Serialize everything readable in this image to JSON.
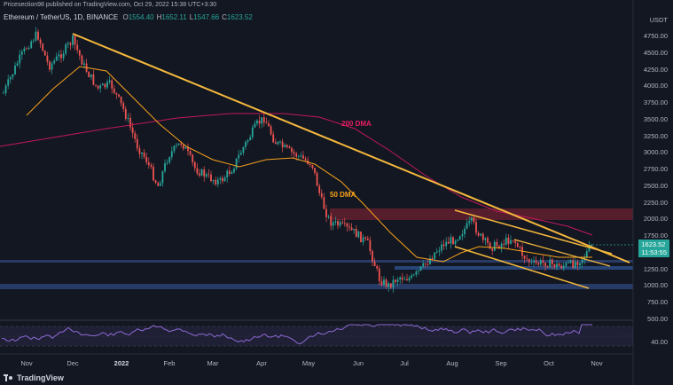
{
  "header": {
    "published_by": "Pricesection98 published on TradingView.com, Oct 29, 2022 15:38 UTC+3:30",
    "symbol": "Ethereum / TetherUS, 1D, BINANCE",
    "ohlc": [
      {
        "key": "O",
        "value": "1554.40"
      },
      {
        "key": "H",
        "value": "1652.11"
      },
      {
        "key": "L",
        "value": "1547.66"
      },
      {
        "key": "C",
        "value": "1623.52"
      }
    ]
  },
  "price_axis": {
    "currency": "USDT",
    "ticks": [
      "4750.00",
      "4500.00",
      "4250.00",
      "4000.00",
      "3750.00",
      "3500.00",
      "3250.00",
      "3000.00",
      "2750.00",
      "2500.00",
      "2250.00",
      "2000.00",
      "1750.00",
      "1500.00",
      "1250.00",
      "1000.00",
      "750.00",
      "500.00"
    ],
    "last_price": "1623.52",
    "countdown": "11:53:55"
  },
  "rsi_axis": {
    "tick": "40.00"
  },
  "time_axis": {
    "labels": [
      "Nov",
      "Dec",
      "2022",
      "Feb",
      "Mar",
      "Apr",
      "May",
      "Jun",
      "Jul",
      "Aug",
      "Sep",
      "Oct",
      "Nov"
    ]
  },
  "annotations": {
    "ma200_label": "200 DMA",
    "ma50_label": "50 DMA"
  },
  "footer": {
    "brand": "TradingView"
  },
  "colors": {
    "background": "#131722",
    "up": "#26a69a",
    "down": "#ef5350",
    "trendline": "#f5b83d",
    "ma50": "#f7a21b",
    "ma200": "#c2185b",
    "rsi": "#8e6bd6",
    "zone_resistance": "#8b2c3a",
    "zone_support": "#2a3f6e"
  }
}
